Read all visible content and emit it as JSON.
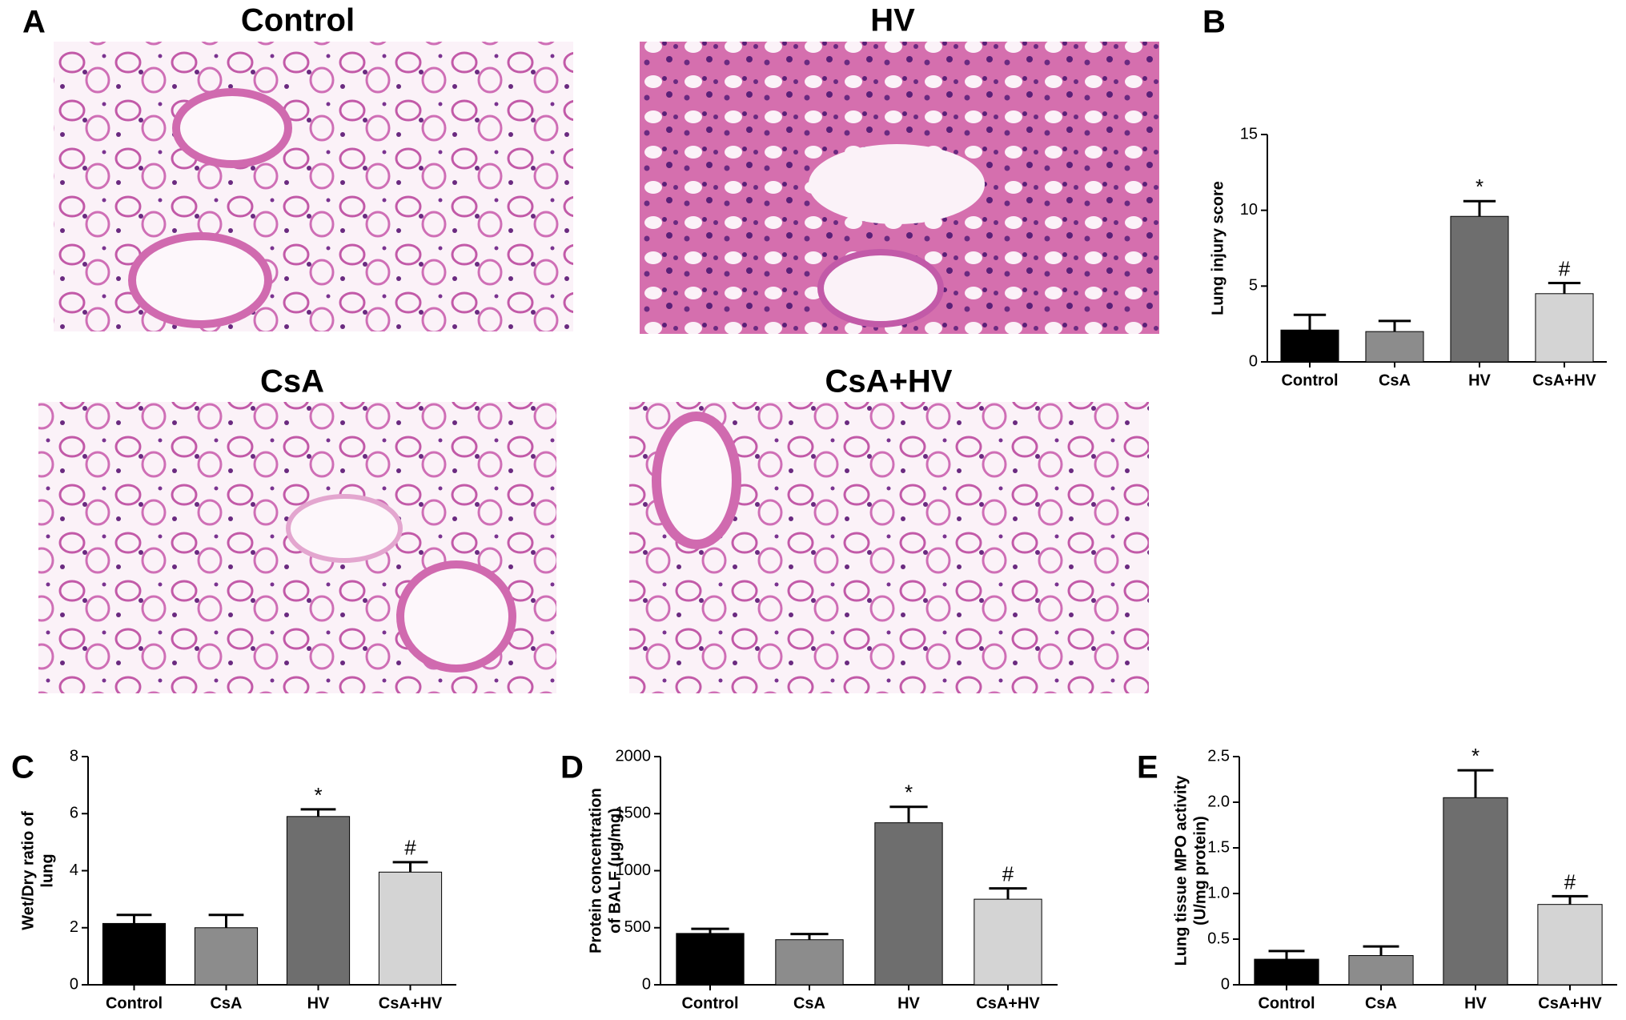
{
  "micrographs": {
    "label": "A",
    "panels": [
      "Control",
      "HV",
      "CsA",
      "CsA+HV"
    ]
  },
  "chart_data": [
    {
      "type": "bar",
      "panel_label": "B",
      "ylabel": [
        "Lung injury score"
      ],
      "categories": [
        "Control",
        "CsA",
        "HV",
        "CsA+HV"
      ],
      "values": [
        2.1,
        2.0,
        9.6,
        4.5
      ],
      "errors": [
        1.0,
        0.7,
        1.0,
        0.7
      ],
      "colors": [
        "#000000",
        "#8c8c8c",
        "#6e6e6e",
        "#d4d4d4"
      ],
      "ylim": [
        0,
        15
      ],
      "yticks": [
        0,
        5,
        10,
        15
      ],
      "annotations": [
        {
          "category": "HV",
          "text": "*"
        },
        {
          "category": "CsA+HV",
          "text": "#"
        }
      ]
    },
    {
      "type": "bar",
      "panel_label": "C",
      "ylabel": [
        "Wet/Dry ratio of",
        "lung"
      ],
      "categories": [
        "Control",
        "CsA",
        "HV",
        "CsA+HV"
      ],
      "values": [
        2.15,
        2.0,
        5.9,
        3.95
      ],
      "errors": [
        0.3,
        0.45,
        0.25,
        0.35
      ],
      "colors": [
        "#000000",
        "#8c8c8c",
        "#6e6e6e",
        "#d4d4d4"
      ],
      "ylim": [
        0,
        8
      ],
      "yticks": [
        0,
        2,
        4,
        6,
        8
      ],
      "annotations": [
        {
          "category": "HV",
          "text": "*"
        },
        {
          "category": "CsA+HV",
          "text": "#"
        }
      ]
    },
    {
      "type": "bar",
      "panel_label": "D",
      "ylabel": [
        "Protein concentration",
        "of BALF (μg/mg)"
      ],
      "categories": [
        "Control",
        "CsA",
        "HV",
        "CsA+HV"
      ],
      "values": [
        450,
        395,
        1420,
        750
      ],
      "errors": [
        40,
        50,
        140,
        95
      ],
      "colors": [
        "#000000",
        "#8c8c8c",
        "#6e6e6e",
        "#d4d4d4"
      ],
      "ylim": [
        0,
        2000
      ],
      "yticks": [
        0,
        500,
        1000,
        1500,
        2000
      ],
      "annotations": [
        {
          "category": "HV",
          "text": "*"
        },
        {
          "category": "CsA+HV",
          "text": "#"
        }
      ]
    },
    {
      "type": "bar",
      "panel_label": "E",
      "ylabel": [
        "Lung  tissue  MPO activity",
        "(U/mg protein)"
      ],
      "categories": [
        "Control",
        "CsA",
        "HV",
        "CsA+HV"
      ],
      "values": [
        0.28,
        0.32,
        2.05,
        0.88
      ],
      "errors": [
        0.09,
        0.1,
        0.3,
        0.09
      ],
      "colors": [
        "#000000",
        "#8c8c8c",
        "#6e6e6e",
        "#d4d4d4"
      ],
      "ylim": [
        0,
        2.5
      ],
      "yticks": [
        0,
        0.5,
        {
          "value": 1.0,
          "label": "1.0"
        },
        1.5,
        {
          "value": 2.0,
          "label": "2.0"
        },
        2.5
      ],
      "annotations": [
        {
          "category": "HV",
          "text": "*"
        },
        {
          "category": "CsA+HV",
          "text": "#"
        }
      ]
    }
  ]
}
